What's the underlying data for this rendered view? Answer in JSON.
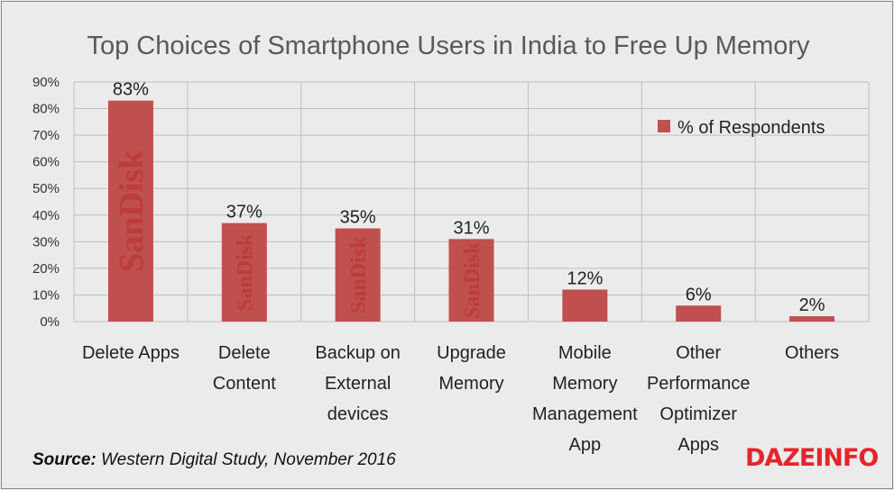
{
  "chart_data": {
    "type": "bar",
    "title": "Top Choices of Smartphone Users in India to Free Up Memory",
    "categories": [
      [
        "Delete Apps"
      ],
      [
        "Delete",
        "Content"
      ],
      [
        "Backup on",
        "External",
        "devices"
      ],
      [
        "Upgrade",
        "Memory"
      ],
      [
        "Mobile",
        "Memory",
        "Management",
        "App"
      ],
      [
        "Other",
        "Performance",
        "Optimizer",
        "Apps"
      ],
      [
        "Others"
      ]
    ],
    "series": [
      {
        "name": "% of Respondents",
        "values": [
          83,
          37,
          35,
          31,
          12,
          6,
          2
        ],
        "color": "#c0504d"
      }
    ],
    "data_labels": [
      "83%",
      "37%",
      "35%",
      "31%",
      "12%",
      "6%",
      "2%"
    ],
    "yticks": [
      "0%",
      "10%",
      "20%",
      "30%",
      "40%",
      "50%",
      "60%",
      "70%",
      "80%",
      "90%"
    ],
    "ylim": [
      0,
      90
    ],
    "grid": true,
    "legend_position": "top-right",
    "watermark_text": "SanDisk"
  },
  "source": {
    "label": "Source:",
    "text": "Western Digital Study, November 2016"
  },
  "brand": {
    "logo_text": "DAZEINFO",
    "color": "#e2262b"
  }
}
